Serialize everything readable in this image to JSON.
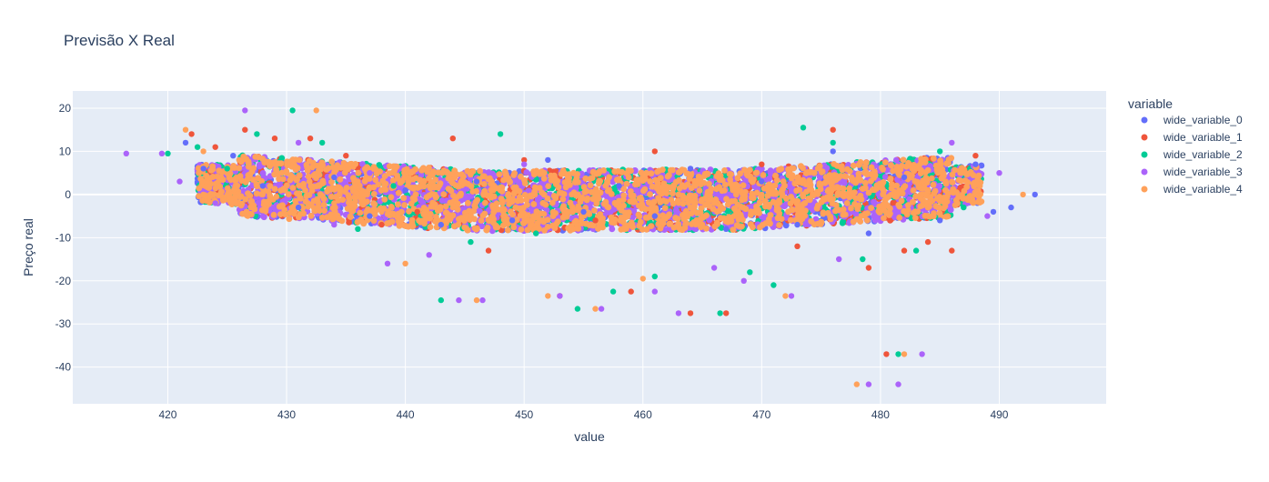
{
  "chart_data": {
    "type": "scatter",
    "title": "Previsão X Real",
    "xlabel": "value",
    "ylabel": "Preço real",
    "xlim": [
      412,
      499
    ],
    "ylim": [
      -48.5,
      24
    ],
    "x_ticks": [
      420,
      430,
      440,
      450,
      460,
      470,
      480,
      490
    ],
    "y_ticks": [
      20,
      10,
      0,
      -10,
      -20,
      -30,
      -40
    ],
    "grid": true,
    "background": "#e5ecf6",
    "legend": {
      "title": "variable",
      "placement": "right",
      "entries": [
        "wide_variable_0",
        "wide_variable_1",
        "wide_variable_2",
        "wide_variable_3",
        "wide_variable_4"
      ]
    },
    "series": [
      {
        "name": "wide_variable_0",
        "color": "#636efa",
        "x": [
          421.5,
          423,
          425.5,
          428,
          431,
          434,
          437,
          440,
          443,
          446,
          449,
          452,
          455,
          458,
          461,
          464,
          467,
          470,
          473,
          476,
          479,
          482,
          485,
          488,
          489.5,
          491,
          493
        ],
        "y": [
          12,
          6,
          9,
          2,
          -3,
          4,
          -5,
          1,
          -7,
          3,
          -6,
          8,
          -4,
          2,
          -5,
          6,
          -8,
          3,
          -7,
          10,
          -9,
          4,
          -6,
          7,
          -4,
          -3,
          0
        ]
      },
      {
        "name": "wide_variable_1",
        "color": "#ef553b",
        "x": [
          422,
          424,
          426.5,
          429,
          432,
          435,
          438,
          441,
          444,
          447,
          450,
          453,
          456,
          459,
          461,
          464,
          467,
          470,
          473,
          476,
          479,
          480.5,
          482,
          484,
          486,
          488
        ],
        "y": [
          14,
          11,
          15,
          13,
          13,
          9,
          -7,
          -4,
          13,
          -13,
          8,
          -23.5,
          -6,
          -22.5,
          10,
          -27.5,
          -27.5,
          7,
          -12,
          15,
          -17,
          -37,
          -13,
          -11,
          -13,
          9
        ]
      },
      {
        "name": "wide_variable_2",
        "color": "#00cc96",
        "x": [
          420,
          422.5,
          425,
          427.5,
          430.5,
          433,
          436,
          439,
          443,
          445.5,
          448,
          451,
          454.5,
          457.5,
          461,
          466.5,
          469,
          471,
          473.5,
          476,
          478.5,
          481.5,
          483,
          485,
          487
        ],
        "y": [
          9.5,
          11,
          6,
          14,
          19.5,
          12,
          -8,
          2,
          -24.5,
          -11,
          14,
          -9,
          -26.5,
          -22.5,
          -19,
          -27.5,
          -18,
          -21,
          15.5,
          12,
          -15,
          -37,
          -13,
          10,
          -3
        ]
      },
      {
        "name": "wide_variable_3",
        "color": "#ab63fa",
        "x": [
          416.5,
          419.5,
          421,
          424,
          426.5,
          428,
          431,
          434,
          437,
          438.5,
          442,
          444.5,
          446.5,
          450,
          453,
          456.5,
          461,
          463,
          466,
          468.5,
          472.5,
          476.5,
          479,
          481.5,
          483.5,
          486,
          489,
          490
        ],
        "y": [
          9.5,
          9.5,
          3,
          -2,
          19.5,
          -5,
          12,
          -7,
          5,
          -16,
          -14,
          -24.5,
          -24.5,
          7,
          -23.5,
          -26.5,
          -22.5,
          -27.5,
          -17,
          -20,
          -23.5,
          -15,
          -44,
          -44,
          -37,
          12,
          -5,
          5
        ]
      },
      {
        "name": "wide_variable_4",
        "color": "#ffa15a",
        "x": [
          421.5,
          423,
          424.5,
          426,
          428,
          430,
          432.5,
          434,
          436,
          438,
          440,
          442,
          444,
          446,
          448,
          450,
          452,
          454,
          456,
          458,
          460,
          462,
          464,
          466,
          468,
          470,
          472,
          474,
          476,
          478,
          480,
          482,
          484,
          486,
          488,
          492
        ],
        "y": [
          15,
          10,
          4,
          8,
          0,
          5,
          19.5,
          -2,
          3,
          -4,
          -16,
          2,
          -3,
          -24.5,
          1,
          -5,
          -23.5,
          0,
          -26.5,
          -3,
          -19.5,
          1,
          -3,
          -2,
          2,
          0,
          -23.5,
          3,
          -1,
          -44,
          2,
          -37,
          1,
          3,
          0,
          0
        ]
      }
    ]
  }
}
